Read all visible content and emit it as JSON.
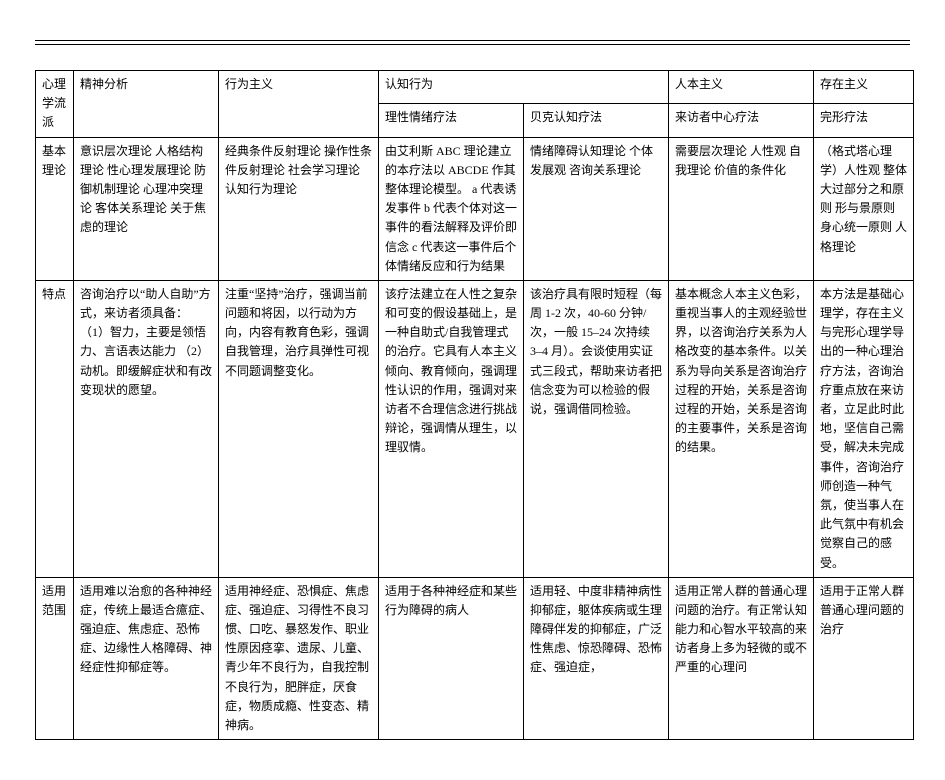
{
  "table": {
    "headers": {
      "row_label_h": "心理学流派",
      "col1": "精神分析",
      "col2": "行为主义",
      "col3_group": "认知行为",
      "col3a": "理性情绪疗法",
      "col3b": "贝克认知疗法",
      "col4_group": "人本主义",
      "col4a": "来访者中心疗法",
      "col5_group": "存在主义",
      "col5a": "完形疗法"
    },
    "rows": [
      {
        "label": "基本理论",
        "c1": "意识层次理论\n人格结构理论\n性心理发展理论\n防御机制理论\n心理冲突理论\n客体关系理论\n关于焦虑的理论",
        "c2": "经典条件反射理论\n操作性条件反射理论\n社会学习理论\n认知行为理论",
        "c3a": "由艾利斯 ABC 理论建立的本疗法以 ABCDE 作其整体理论模型。 a 代表诱发事件 b 代表个体对这一事件的看法解释及评价即信念 c 代表这一事件后个体情绪反应和行为结果",
        "c3b": "情绪障碍认知理论\n个体发展观\n咨询关系理论",
        "c4a": "需要层次理论\n人性观\n自我理论\n价值的条件化",
        "c5a": "（格式塔心理学）人性观\n整体大过部分之和原则\n形与景原则\n身心统一原则\n人格理论"
      },
      {
        "label": "特点",
        "c1": "咨询治疗以“助人自助”方式，来访者须具备：\n（1）智力，主要是领悟力、言语表达能力\n（2）动机。即缓解症状和有改变现状的愿望。",
        "c2": "注重“坚持”治疗，强调当前问题和将因，以行动为方向，内容有教育色彩，强调自我管理，治疗具弹性可视不同题调整变化。",
        "c3a": "该疗法建立在人性之复杂和可变的假设基础上，是一种自助式/自我管理式的治疗。它具有人本主义倾向、教育倾向，强调理性认识的作用，强调对来访者不合理信念进行挑战辩论，强调情从理生，以理驭情。",
        "c3b": "该治疗具有限时短程（每周 1-2 次，40-60 分钟/次，一般 15–24 次持续 3–4 月）。会谈使用实证式三段式，帮助来访者把信念变为可以检验的假说，强调借同检验。",
        "c4a": "基本概念人本主义色彩，重视当事人的主观经验世界，以咨询治疗关系为人格改变的基本条件。以关系为导向关系是咨询治疗过程的开始，关系是咨询过程的开始，关系是咨询的主要事件，关系是咨询的结果。",
        "c5a": "本方法是基础心理学，存在主义与完形心理学导出的一种心理治疗方法，咨询治疗重点放在来访者，立足此时此地，坚信自己需受，解决未完成事件，咨询治疗师创造一种气氛，使当事人在此气氛中有机会觉察自己的感受。"
      },
      {
        "label": "适用范围",
        "c1": "适用难以治愈的各种神经症，传统上最适合癔症、强迫症、焦虑症、恐怖症、边缘性人格障碍、神经症性抑郁症等。",
        "c2": "适用神经症、恐惧症、焦虑症、强迫症、习得性不良习惯、口吃、暴怒发作、职业性原因痉挛、遗尿、儿童、青少年不良行为，自我控制不良行为，肥胖症，厌食症，物质成瘾、性变态、精神病。",
        "c3a": "适用于各种神经症和某些行为障碍的病人",
        "c3b": "适用轻、中度非精神病性抑郁症，躯体疾病或生理障碍伴发的抑郁症，广泛性焦虑、惊恐障碍、恐怖症、强迫症，",
        "c4a": "适用正常人群的普通心理问题的治疗。有正常认知能力和心智水平较高的来访者身上多为轻微的或不严重的心理问",
        "c5a": "适用于正常人群普通心理问题的治疗"
      }
    ]
  }
}
